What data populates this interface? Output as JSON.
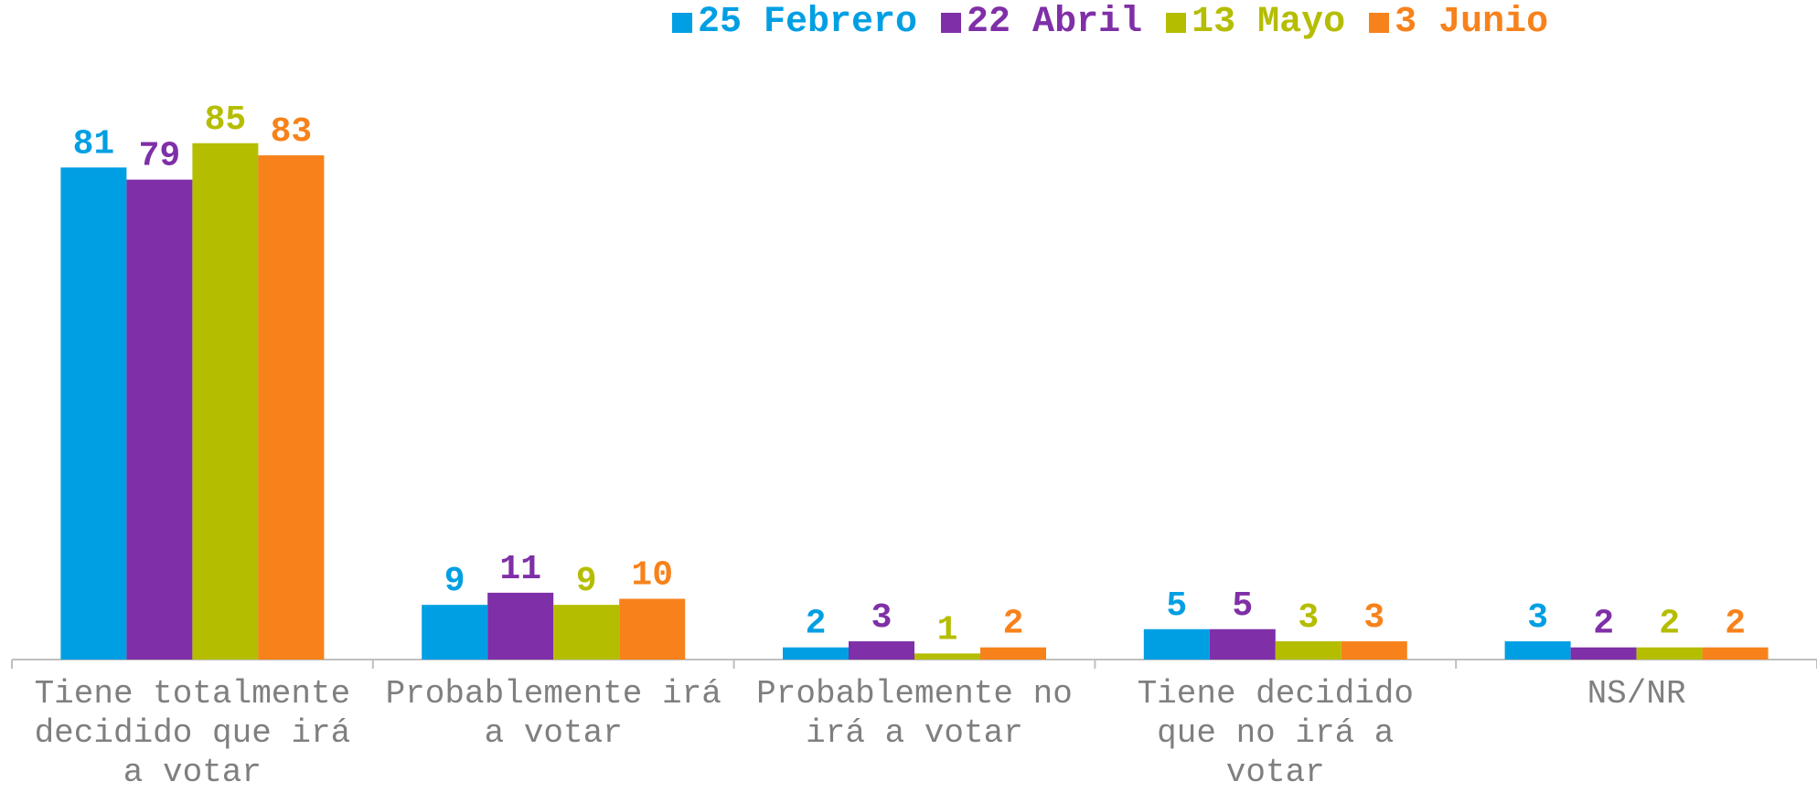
{
  "chart_data": {
    "type": "bar",
    "categories": [
      "Tiene totalmente decidido que irá a votar",
      "Probablemente irá a votar",
      "Probablemente no irá a votar",
      "Tiene decidido que no irá a votar",
      "NS/NR"
    ],
    "series": [
      {
        "name": "25 Febrero",
        "color": "#009fe3",
        "values": [
          81,
          9,
          2,
          5,
          3
        ]
      },
      {
        "name": "22 Abril",
        "color": "#7f2fa7",
        "values": [
          79,
          11,
          3,
          5,
          2
        ]
      },
      {
        "name": "13 Mayo",
        "color": "#b5bd00",
        "values": [
          85,
          9,
          1,
          3,
          2
        ]
      },
      {
        "name": "3 Junio",
        "color": "#f7821b",
        "values": [
          83,
          10,
          2,
          3,
          2
        ]
      }
    ],
    "ylim": [
      0,
      100
    ]
  }
}
